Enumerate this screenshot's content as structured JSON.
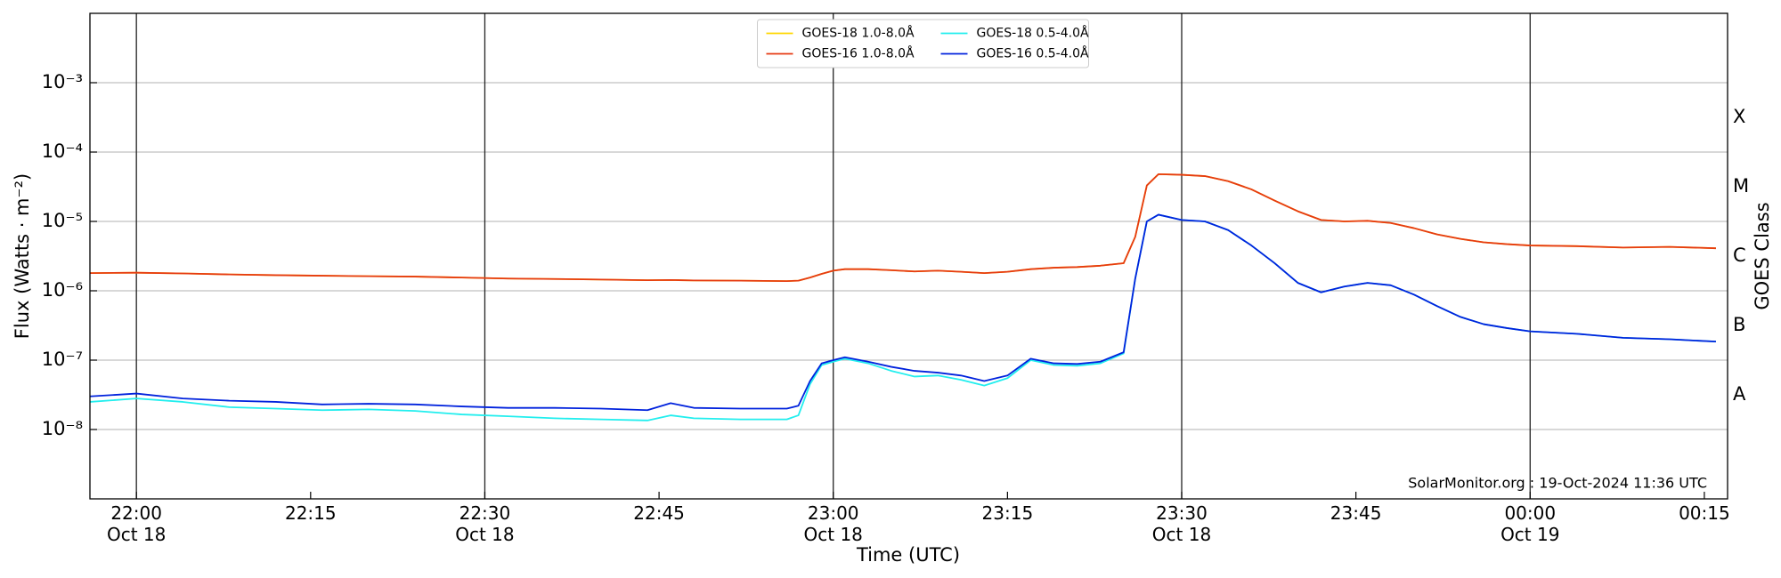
{
  "chart_data": {
    "type": "line",
    "x_label": "Time (UTC)",
    "y_label": "Flux (Watts · m⁻²)",
    "y2_label": "GOES Class",
    "annotation": "SolarMonitor.org : 19-Oct-2024 11:36 UTC",
    "x": [
      "Oct 18 21:56",
      "Oct 18 22:00",
      "Oct 18 22:04",
      "Oct 18 22:08",
      "Oct 18 22:12",
      "Oct 18 22:16",
      "Oct 18 22:20",
      "Oct 18 22:24",
      "Oct 18 22:28",
      "Oct 18 22:32",
      "Oct 18 22:36",
      "Oct 18 22:40",
      "Oct 18 22:44",
      "Oct 18 22:46",
      "Oct 18 22:48",
      "Oct 18 22:52",
      "Oct 18 22:56",
      "Oct 18 22:57",
      "Oct 18 22:58",
      "Oct 18 22:59",
      "Oct 18 23:00",
      "Oct 18 23:01",
      "Oct 18 23:03",
      "Oct 18 23:05",
      "Oct 18 23:07",
      "Oct 18 23:09",
      "Oct 18 23:11",
      "Oct 18 23:13",
      "Oct 18 23:15",
      "Oct 18 23:17",
      "Oct 18 23:19",
      "Oct 18 23:21",
      "Oct 18 23:23",
      "Oct 18 23:25",
      "Oct 18 23:26",
      "Oct 18 23:27",
      "Oct 18 23:28",
      "Oct 18 23:30",
      "Oct 18 23:32",
      "Oct 18 23:34",
      "Oct 18 23:36",
      "Oct 18 23:38",
      "Oct 18 23:40",
      "Oct 18 23:42",
      "Oct 18 23:44",
      "Oct 18 23:46",
      "Oct 18 23:48",
      "Oct 18 23:50",
      "Oct 18 23:52",
      "Oct 18 23:54",
      "Oct 18 23:56",
      "Oct 18 23:58",
      "Oct 19 00:00",
      "Oct 19 00:04",
      "Oct 19 00:08",
      "Oct 19 00:12",
      "Oct 19 00:16"
    ],
    "series": [
      {
        "name": "GOES-18 1.0-8.0Å",
        "color": "#ffd700",
        "values": [
          1.8e-06,
          1.82e-06,
          1.78e-06,
          1.72e-06,
          1.68e-06,
          1.65e-06,
          1.62e-06,
          1.6e-06,
          1.55e-06,
          1.5e-06,
          1.48e-06,
          1.45e-06,
          1.42e-06,
          1.43e-06,
          1.41e-06,
          1.4e-06,
          1.38e-06,
          1.4e-06,
          1.55e-06,
          1.75e-06,
          1.95e-06,
          2.05e-06,
          2.05e-06,
          1.98e-06,
          1.9e-06,
          1.95e-06,
          1.88e-06,
          1.8e-06,
          1.88e-06,
          2.05e-06,
          2.15e-06,
          2.2e-06,
          2.3e-06,
          2.5e-06,
          6e-06,
          3.3e-05,
          4.8e-05,
          4.7e-05,
          4.5e-05,
          3.8e-05,
          2.9e-05,
          2e-05,
          1.4e-05,
          1.05e-05,
          1e-05,
          1.02e-05,
          9.5e-06,
          8e-06,
          6.5e-06,
          5.6e-06,
          5e-06,
          4.7e-06,
          4.5e-06,
          4.4e-06,
          4.2e-06,
          4.3e-06,
          4.1e-06
        ]
      },
      {
        "name": "GOES-16 1.0-8.0Å",
        "color": "#e63a12",
        "values": [
          1.8e-06,
          1.82e-06,
          1.78e-06,
          1.72e-06,
          1.68e-06,
          1.65e-06,
          1.62e-06,
          1.6e-06,
          1.55e-06,
          1.5e-06,
          1.48e-06,
          1.45e-06,
          1.42e-06,
          1.43e-06,
          1.41e-06,
          1.4e-06,
          1.38e-06,
          1.4e-06,
          1.55e-06,
          1.75e-06,
          1.95e-06,
          2.05e-06,
          2.05e-06,
          1.98e-06,
          1.9e-06,
          1.95e-06,
          1.88e-06,
          1.8e-06,
          1.88e-06,
          2.05e-06,
          2.15e-06,
          2.2e-06,
          2.3e-06,
          2.5e-06,
          6e-06,
          3.3e-05,
          4.8e-05,
          4.7e-05,
          4.5e-05,
          3.8e-05,
          2.9e-05,
          2e-05,
          1.4e-05,
          1.05e-05,
          1e-05,
          1.02e-05,
          9.5e-06,
          8e-06,
          6.5e-06,
          5.6e-06,
          5e-06,
          4.7e-06,
          4.5e-06,
          4.4e-06,
          4.2e-06,
          4.3e-06,
          4.1e-06
        ]
      },
      {
        "name": "GOES-18 0.5-4.0Å",
        "color": "#22eeee",
        "values": [
          2.5e-08,
          2.8e-08,
          2.5e-08,
          2.1e-08,
          2e-08,
          1.9e-08,
          1.95e-08,
          1.85e-08,
          1.65e-08,
          1.55e-08,
          1.45e-08,
          1.4e-08,
          1.35e-08,
          1.6e-08,
          1.45e-08,
          1.4e-08,
          1.4e-08,
          1.6e-08,
          4.5e-08,
          8.5e-08,
          9.5e-08,
          1.05e-07,
          9e-08,
          7e-08,
          5.8e-08,
          6e-08,
          5.2e-08,
          4.3e-08,
          5.5e-08,
          1e-07,
          8.5e-08,
          8.3e-08,
          9e-08,
          1.25e-07,
          1.5e-06,
          1e-05,
          1.25e-05,
          1.05e-05,
          1e-05,
          7.5e-06,
          4.5e-06,
          2.5e-06,
          1.3e-06,
          9.5e-07,
          1.15e-06,
          1.3e-06,
          1.2e-06,
          8.8e-07,
          6e-07,
          4.2e-07,
          3.3e-07,
          2.9e-07,
          2.6e-07,
          2.4e-07,
          2.1e-07,
          2e-07,
          1.85e-07
        ]
      },
      {
        "name": "GOES-16 0.5-4.0Å",
        "color": "#0022dd",
        "values": [
          3e-08,
          3.3e-08,
          2.8e-08,
          2.6e-08,
          2.5e-08,
          2.3e-08,
          2.35e-08,
          2.3e-08,
          2.15e-08,
          2.05e-08,
          2.05e-08,
          2e-08,
          1.9e-08,
          2.4e-08,
          2.05e-08,
          2e-08,
          2e-08,
          2.2e-08,
          5e-08,
          9e-08,
          1e-07,
          1.1e-07,
          9.5e-08,
          8e-08,
          7e-08,
          6.6e-08,
          6e-08,
          5e-08,
          6e-08,
          1.05e-07,
          9e-08,
          8.8e-08,
          9.5e-08,
          1.3e-07,
          1.5e-06,
          1e-05,
          1.25e-05,
          1.05e-05,
          1e-05,
          7.5e-06,
          4.5e-06,
          2.5e-06,
          1.3e-06,
          9.5e-07,
          1.15e-06,
          1.3e-06,
          1.2e-06,
          8.8e-07,
          6e-07,
          4.2e-07,
          3.3e-07,
          2.9e-07,
          2.6e-07,
          2.4e-07,
          2.1e-07,
          2e-07,
          1.85e-07
        ]
      }
    ],
    "xlim": [
      "Oct 18 21:56",
      "Oct 19 00:17"
    ],
    "xticks": [
      {
        "value": "Oct 18 22:00",
        "label": "22:00\nOct 18"
      },
      {
        "value": "Oct 18 22:15",
        "label": "22:15"
      },
      {
        "value": "Oct 18 22:30",
        "label": "22:30\nOct 18"
      },
      {
        "value": "Oct 18 22:45",
        "label": "22:45"
      },
      {
        "value": "Oct 18 23:00",
        "label": "23:00\nOct 18"
      },
      {
        "value": "Oct 18 23:15",
        "label": "23:15"
      },
      {
        "value": "Oct 18 23:30",
        "label": "23:30\nOct 18"
      },
      {
        "value": "Oct 18 23:45",
        "label": "23:45"
      },
      {
        "value": "Oct 19 00:00",
        "label": "00:00\nOct 19"
      },
      {
        "value": "Oct 19 00:15",
        "label": "00:15"
      }
    ],
    "vlines": [
      "Oct 18 22:00",
      "Oct 18 22:30",
      "Oct 18 23:00",
      "Oct 18 23:30",
      "Oct 19 00:00"
    ],
    "ylim": [
      1e-09,
      0.01
    ],
    "log_y": true,
    "yticks": [
      {
        "value": 1e-08,
        "label": "10⁻⁸"
      },
      {
        "value": 1e-07,
        "label": "10⁻⁷"
      },
      {
        "value": 1e-06,
        "label": "10⁻⁶"
      },
      {
        "value": 1e-05,
        "label": "10⁻⁵"
      },
      {
        "value": 0.0001,
        "label": "10⁻⁴"
      },
      {
        "value": 0.001,
        "label": "10⁻³"
      }
    ],
    "y2lim": [
      1e-09,
      0.01
    ],
    "y2ticks": [
      {
        "value": 3.16e-08,
        "label": "A"
      },
      {
        "value": 3.16e-07,
        "label": "B"
      },
      {
        "value": 3.16e-06,
        "label": "C"
      },
      {
        "value": 3.16e-05,
        "label": "M"
      },
      {
        "value": 0.000316,
        "label": "X"
      }
    ],
    "grid": true,
    "legend": "upper center"
  }
}
